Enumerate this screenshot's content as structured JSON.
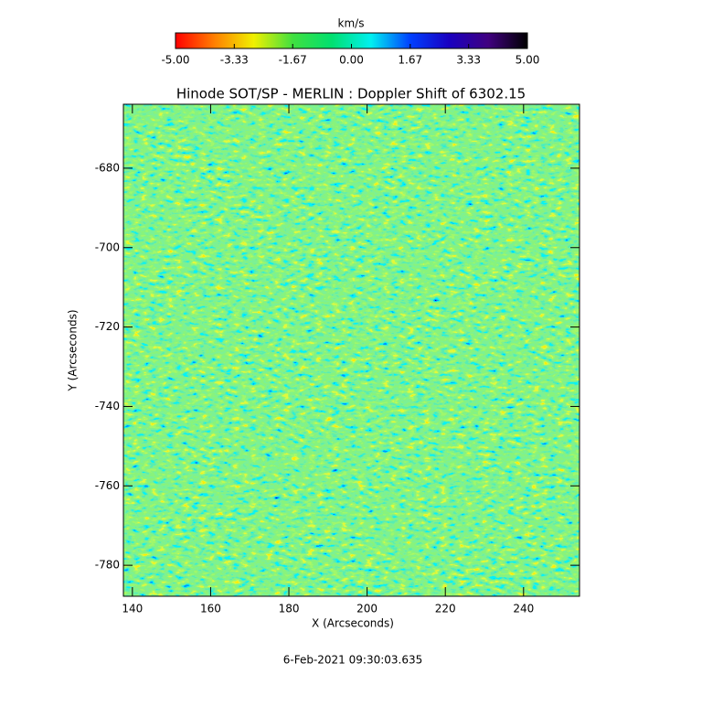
{
  "chart_data": {
    "type": "image",
    "title": "Hinode SOT/SP - MERLIN : Doppler Shift of 6302.15",
    "x_label": "X (Arcseconds)",
    "y_label": "Y (Arcseconds)",
    "footer": "6-Feb-2021 09:30:03.635",
    "xlim": [
      137.7,
      254.3
    ],
    "ylim": [
      -787.8,
      -663.9
    ],
    "xticks": [
      140,
      160,
      180,
      200,
      220,
      240
    ],
    "yticks": [
      -680,
      -700,
      -720,
      -740,
      -760,
      -780
    ],
    "colorbar": {
      "label": "km/s",
      "lim": [
        -5,
        5
      ],
      "ticks": [
        {
          "value": -5,
          "label": "-5.00"
        },
        {
          "value": -3.33,
          "label": "-3.33"
        },
        {
          "value": -1.67,
          "label": "-1.67"
        },
        {
          "value": 0,
          "label": "0.00"
        },
        {
          "value": 1.67,
          "label": "1.67"
        },
        {
          "value": 3.33,
          "label": "3.33"
        },
        {
          "value": 5,
          "label": "5.00"
        }
      ],
      "colormap": [
        "#ff0000",
        "#ff8000",
        "#f0f000",
        "#40e040",
        "#00e070",
        "#00f0f0",
        "#0040ff",
        "#1a00c0",
        "#400080",
        "#000000"
      ]
    }
  }
}
